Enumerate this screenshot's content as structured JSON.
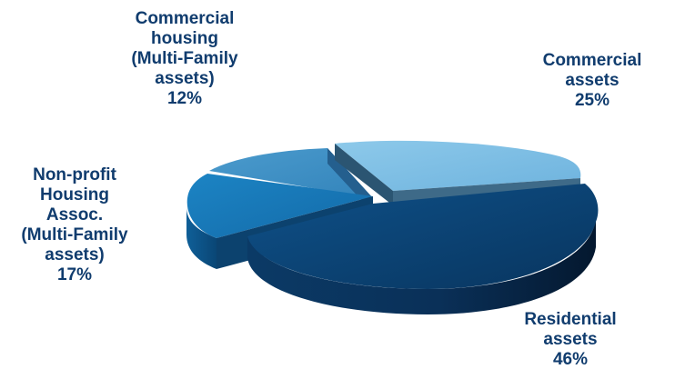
{
  "chart_data": {
    "type": "pie",
    "style": "3d-exploded",
    "slices": [
      {
        "key": "commercial",
        "label_lines": [
          "Commercial",
          "assets"
        ],
        "value_label": "25%",
        "value": 25,
        "color": "#7fbfe4"
      },
      {
        "key": "residential",
        "label_lines": [
          "Residential",
          "assets"
        ],
        "value_label": "46%",
        "value": 46,
        "color": "#0d4a7e"
      },
      {
        "key": "nonprofit",
        "label_lines": [
          "Non-profit",
          "Housing",
          "Assoc.",
          "(Multi-Family",
          "assets)"
        ],
        "value_label": "17%",
        "value": 17,
        "color": "#1677b6"
      },
      {
        "key": "commercial_housing",
        "label_lines": [
          "Commercial",
          "housing",
          "(Multi-Family",
          "assets)"
        ],
        "value_label": "12%",
        "value": 12,
        "color": "#3e8fc4"
      }
    ],
    "legend": "none",
    "title": ""
  }
}
